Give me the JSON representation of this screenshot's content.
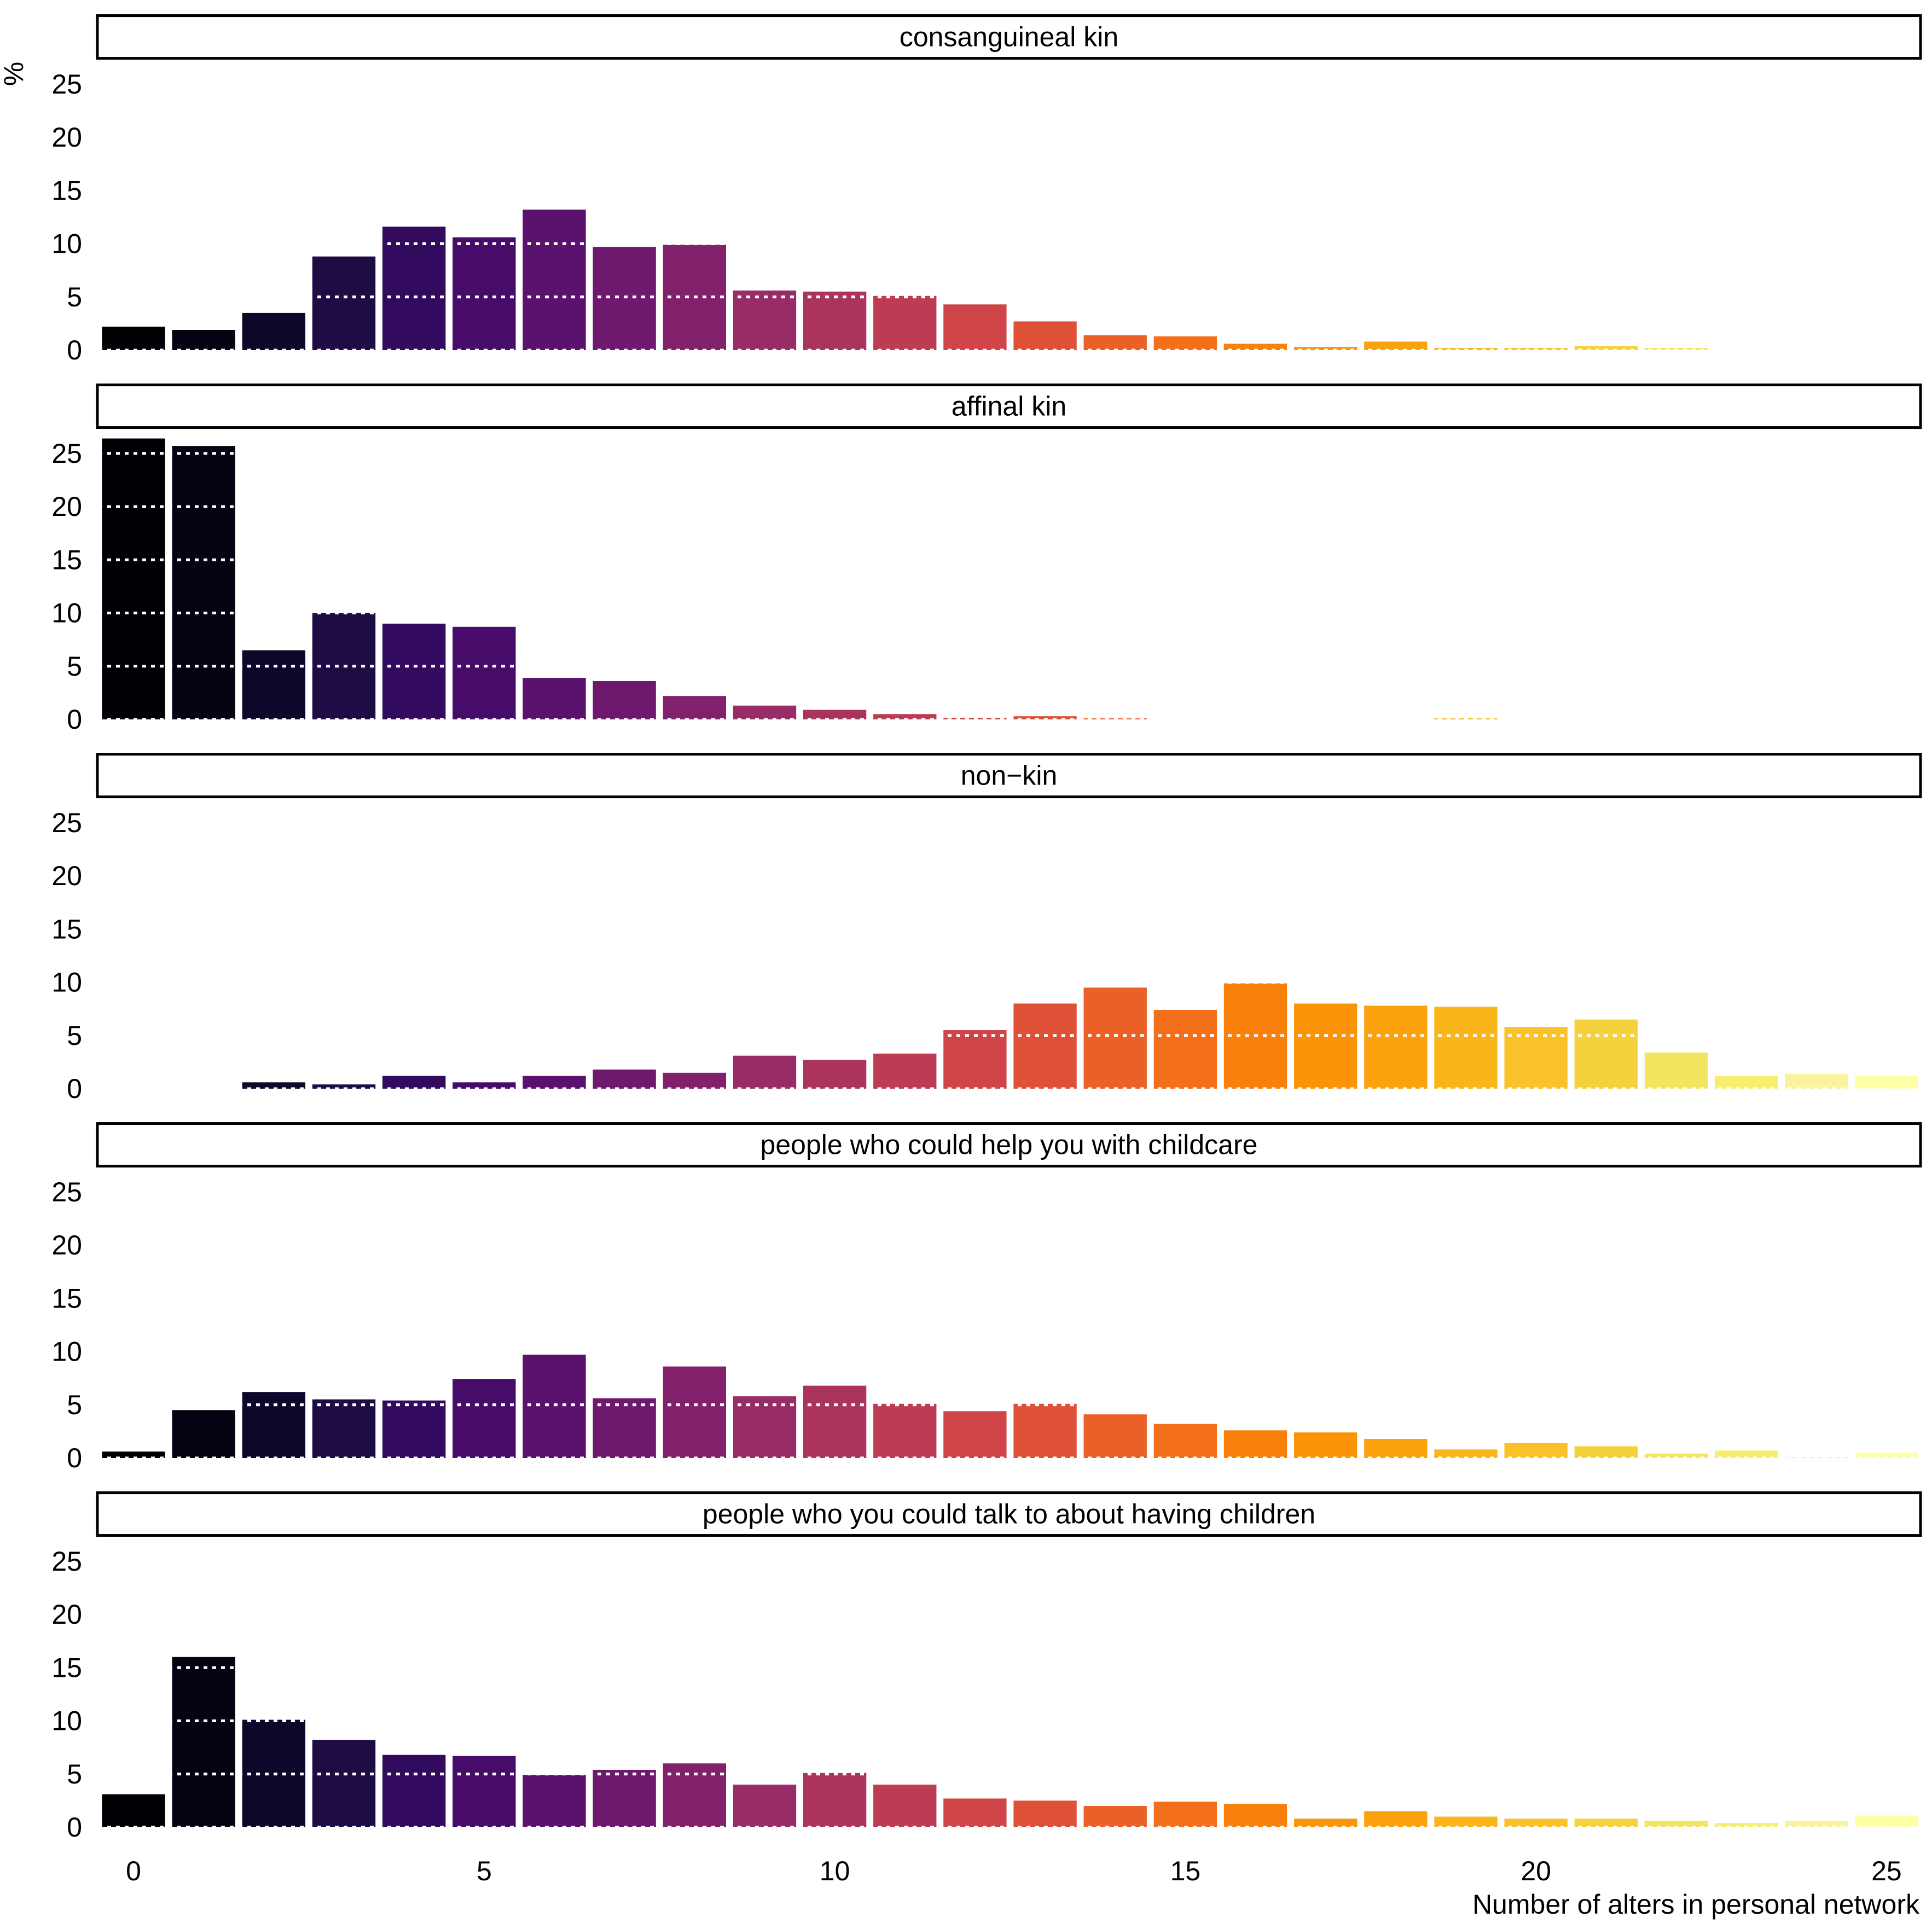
{
  "chart_data": {
    "type": "bar",
    "layout": "faceted vertical panels",
    "ylabel": "%",
    "xlabel": "Number of alters in personal network",
    "x_ticks": [
      0,
      5,
      10,
      15,
      20,
      25
    ],
    "y_ticks": [
      0,
      5,
      10,
      15,
      20,
      25
    ],
    "xlim": [
      -0.5,
      25.5
    ],
    "ylim": [
      0,
      26.5
    ],
    "gridlines": "white dotted at multiples of 5, drawn over bars",
    "x": [
      0,
      1,
      2,
      3,
      4,
      5,
      6,
      7,
      8,
      9,
      10,
      11,
      12,
      13,
      14,
      15,
      16,
      17,
      18,
      19,
      20,
      21,
      22,
      23,
      24,
      25
    ],
    "colors": [
      "#000004",
      "#040312",
      "#0d0829",
      "#1e0c45",
      "#320a5e",
      "#470b6a",
      "#5b116e",
      "#6f196e",
      "#82206c",
      "#972c66",
      "#ab345e",
      "#bd3c53",
      "#cf4446",
      "#df5137",
      "#eb6027",
      "#f46f1a",
      "#fa800c",
      "#fb9407",
      "#fba10c",
      "#f9b51a",
      "#fac228",
      "#f5d23c",
      "#f3e55d",
      "#f5ee6f",
      "#f9f39e",
      "#fcffa4"
    ],
    "panels": [
      {
        "title": "consanguineal kin",
        "values": [
          2.2,
          1.9,
          3.5,
          8.8,
          11.6,
          10.6,
          13.2,
          9.7,
          9.9,
          5.6,
          5.5,
          5.1,
          4.3,
          2.7,
          1.4,
          1.3,
          0.6,
          0.3,
          0.8,
          0.2,
          0.2,
          0.4,
          0.2,
          0,
          0,
          0
        ]
      },
      {
        "title": "affinal kin",
        "values": [
          26.4,
          25.7,
          6.5,
          10.0,
          9.0,
          8.7,
          3.9,
          3.6,
          2.2,
          1.3,
          0.9,
          0.5,
          0.15,
          0.3,
          0.1,
          0,
          0,
          0,
          0,
          0.1,
          0,
          0,
          0,
          0,
          0,
          0
        ]
      },
      {
        "title": "non−kin",
        "values": [
          0,
          0,
          0.6,
          0.4,
          1.2,
          0.6,
          1.2,
          1.8,
          1.5,
          3.1,
          2.7,
          3.3,
          5.5,
          8.0,
          9.5,
          7.4,
          9.9,
          8.0,
          7.8,
          7.7,
          5.8,
          6.5,
          3.4,
          1.2,
          1.4,
          1.2
        ]
      },
      {
        "title": "people who could help you with childcare",
        "values": [
          0.6,
          4.5,
          6.2,
          5.5,
          5.4,
          7.4,
          9.7,
          5.6,
          8.6,
          5.8,
          6.8,
          5.1,
          4.4,
          5.1,
          4.1,
          3.2,
          2.6,
          2.4,
          1.8,
          0.8,
          1.4,
          1.1,
          0.4,
          0.7,
          0.1,
          0.5
        ]
      },
      {
        "title": "people who you could talk to about having children",
        "values": [
          3.1,
          16.0,
          10.1,
          8.2,
          6.8,
          6.7,
          4.9,
          5.4,
          6.0,
          4.0,
          5.1,
          4.0,
          2.7,
          2.5,
          2.0,
          2.4,
          2.2,
          0.8,
          1.5,
          1.0,
          0.8,
          0.8,
          0.6,
          0.4,
          0.6,
          1.1
        ]
      }
    ]
  }
}
